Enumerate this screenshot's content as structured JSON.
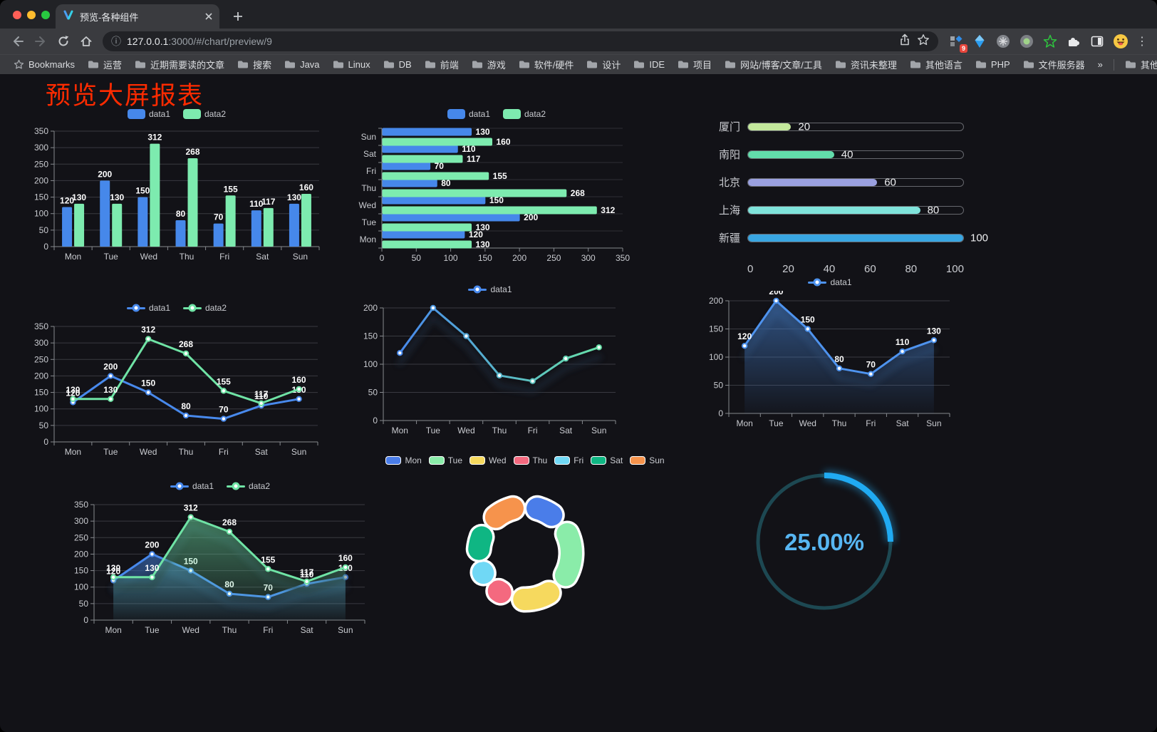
{
  "browser": {
    "tab_title": "预览-各种组件",
    "url_host": "127.0.0.1",
    "url_rest": ":3000/#/chart/preview/9",
    "ext_badge": "9",
    "icons": {
      "site_info": "ⓘ",
      "menu_kebab": "⋮"
    },
    "bookmarks_bar": {
      "first": "Bookmarks",
      "folders": [
        "运营",
        "近期需要读的文章",
        "搜索",
        "Java",
        "Linux",
        "DB",
        "前端",
        "游戏",
        "软件/硬件",
        "设计",
        "IDE",
        "项目",
        "网站/博客/文章/工具",
        "资讯未整理",
        "其他语言",
        "PHP",
        "文件服务器"
      ],
      "overflow": "»",
      "other": "其他书签"
    }
  },
  "page": {
    "title": "预览大屏报表",
    "title_color": "#fe2b00",
    "background": "#121217"
  },
  "chart_data": [
    {
      "id": "grouped-bar-chart",
      "type": "bar",
      "categories": [
        "Mon",
        "Tue",
        "Wed",
        "Thu",
        "Fri",
        "Sat",
        "Sun"
      ],
      "series": [
        {
          "name": "data1",
          "color": "#4688ea",
          "values": [
            120,
            200,
            150,
            80,
            70,
            110,
            130
          ]
        },
        {
          "name": "data2",
          "color": "#7debaf",
          "values": [
            130,
            130,
            312,
            268,
            155,
            117,
            160
          ]
        }
      ],
      "ylim": [
        0,
        350
      ],
      "yticks": [
        0,
        50,
        100,
        150,
        200,
        250,
        300,
        350
      ],
      "grid": true,
      "legend_pos": "top"
    },
    {
      "id": "horizontal-bar-chart",
      "type": "hbar",
      "categories": [
        "Sun",
        "Sat",
        "Fri",
        "Thu",
        "Wed",
        "Tue",
        "Mon"
      ],
      "series": [
        {
          "name": "data1",
          "color": "#4688ea",
          "values": [
            130,
            110,
            70,
            80,
            150,
            200,
            120
          ]
        },
        {
          "name": "data2",
          "color": "#7debaf",
          "values": [
            160,
            117,
            155,
            268,
            312,
            130,
            130
          ]
        }
      ],
      "xlim": [
        0,
        350
      ],
      "xticks": [
        0,
        50,
        100,
        150,
        200,
        250,
        300,
        350
      ],
      "grid": true,
      "legend_pos": "top"
    },
    {
      "id": "progress-chart",
      "type": "progress",
      "max": 100,
      "axis": [
        0,
        20,
        40,
        60,
        80,
        100
      ],
      "items": [
        {
          "label": "厦门",
          "value": 20,
          "color": "#c3e89c"
        },
        {
          "label": "南阳",
          "value": 40,
          "color": "#62dcab"
        },
        {
          "label": "北京",
          "value": 60,
          "color": "#9aa0e0"
        },
        {
          "label": "上海",
          "value": 80,
          "color": "#7fe3db"
        },
        {
          "label": "新疆",
          "value": 100,
          "color": "#39a6e2"
        }
      ]
    },
    {
      "id": "dual-line-chart",
      "type": "line",
      "categories": [
        "Mon",
        "Tue",
        "Wed",
        "Thu",
        "Fri",
        "Sat",
        "Sun"
      ],
      "series": [
        {
          "name": "data1",
          "color": "#4889ec",
          "values": [
            120,
            200,
            150,
            80,
            70,
            110,
            130
          ],
          "labels": true
        },
        {
          "name": "data2",
          "color": "#6fe3a5",
          "values": [
            130,
            130,
            312,
            268,
            155,
            117,
            160
          ],
          "labels": true
        }
      ],
      "ylim": [
        0,
        350
      ],
      "yticks": [
        0,
        50,
        100,
        150,
        200,
        250,
        300,
        350
      ],
      "grid": true,
      "legend_pos": "top"
    },
    {
      "id": "gradient-line-chart",
      "type": "line",
      "categories": [
        "Mon",
        "Tue",
        "Wed",
        "Thu",
        "Fri",
        "Sat",
        "Sun"
      ],
      "series": [
        {
          "name": "data1",
          "gradient": [
            "#4889ec",
            "#67e0a8"
          ],
          "values": [
            120,
            200,
            150,
            80,
            70,
            110,
            130
          ],
          "labels": false
        }
      ],
      "ylim": [
        0,
        200
      ],
      "yticks": [
        0,
        50,
        100,
        150,
        200
      ],
      "grid": true,
      "shadow": true,
      "legend_pos": "top"
    },
    {
      "id": "area-line-chart",
      "type": "line",
      "categories": [
        "Mon",
        "Tue",
        "Wed",
        "Thu",
        "Fri",
        "Sat",
        "Sun"
      ],
      "series": [
        {
          "name": "data1",
          "color": "#4e93ee",
          "values": [
            120,
            200,
            150,
            80,
            70,
            110,
            130
          ],
          "labels": true,
          "area": true
        }
      ],
      "ylim": [
        0,
        200
      ],
      "yticks": [
        0,
        50,
        100,
        150,
        200
      ],
      "grid": true,
      "shadow": true,
      "legend_pos": "top"
    },
    {
      "id": "dual-area-line-chart",
      "type": "line",
      "categories": [
        "Mon",
        "Tue",
        "Wed",
        "Thu",
        "Fri",
        "Sat",
        "Sun"
      ],
      "series": [
        {
          "name": "data1",
          "color": "#4889ec",
          "values": [
            120,
            200,
            150,
            80,
            70,
            110,
            130
          ],
          "labels": true,
          "area": true
        },
        {
          "name": "data2",
          "color": "#6fe3a5",
          "values": [
            130,
            130,
            312,
            268,
            155,
            117,
            160
          ],
          "labels": true,
          "area": true
        }
      ],
      "ylim": [
        0,
        350
      ],
      "yticks": [
        0,
        50,
        100,
        150,
        200,
        250,
        300,
        350
      ],
      "grid": true,
      "shadow": true,
      "legend_pos": "top"
    },
    {
      "id": "donut-chart",
      "type": "donut",
      "legend_pos": "top",
      "items": [
        {
          "name": "Mon",
          "value": 120,
          "color": "#4a7de9"
        },
        {
          "name": "Tue",
          "value": 200,
          "color": "#8aeca9"
        },
        {
          "name": "Wed",
          "value": 150,
          "color": "#f6d95e"
        },
        {
          "name": "Thu",
          "value": 80,
          "color": "#f4697f"
        },
        {
          "name": "Fri",
          "value": 70,
          "color": "#70d8f5"
        },
        {
          "name": "Sat",
          "value": 110,
          "color": "#0fb683"
        },
        {
          "name": "Sun",
          "value": 130,
          "color": "#f6934c"
        }
      ]
    },
    {
      "id": "gauge-chart",
      "type": "gauge",
      "value": 25,
      "label": "25.00%",
      "color": "#20aaf2",
      "track": "#1d4852",
      "text_color": "#57b6f2"
    }
  ]
}
